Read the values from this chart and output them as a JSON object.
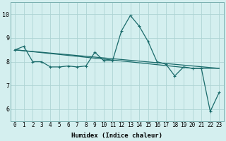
{
  "xlabel": "Humidex (Indice chaleur)",
  "bg_color": "#d4efef",
  "grid_color": "#aed4d4",
  "line_color": "#1a6b6b",
  "spine_color": "#7ab0b0",
  "xlim": [
    -0.5,
    23.5
  ],
  "ylim": [
    5.5,
    10.5
  ],
  "yticks": [
    6,
    7,
    8,
    9,
    10
  ],
  "xticks": [
    0,
    1,
    2,
    3,
    4,
    5,
    6,
    7,
    8,
    9,
    10,
    11,
    12,
    13,
    14,
    15,
    16,
    17,
    18,
    19,
    20,
    21,
    22,
    23
  ],
  "line1_x": [
    0,
    1,
    2,
    3,
    4,
    5,
    6,
    7,
    8,
    9,
    10,
    11,
    12,
    13,
    14,
    15,
    16,
    17,
    18,
    19,
    20,
    21,
    22,
    23
  ],
  "line1_y": [
    8.5,
    8.65,
    8.0,
    8.0,
    7.78,
    7.78,
    7.82,
    7.78,
    7.82,
    8.4,
    8.05,
    8.05,
    9.3,
    9.95,
    9.5,
    8.85,
    8.0,
    7.9,
    7.4,
    7.78,
    7.72,
    7.72,
    5.9,
    6.7
  ],
  "line2_x": [
    0,
    23
  ],
  "line2_y": [
    8.5,
    7.72
  ],
  "line3_x": [
    0,
    20,
    21,
    23
  ],
  "line3_y": [
    8.5,
    7.72,
    7.72,
    7.72
  ],
  "xlabel_fontsize": 6.5,
  "tick_fontsize": 5.5,
  "linewidth": 0.9,
  "markersize": 3.5
}
